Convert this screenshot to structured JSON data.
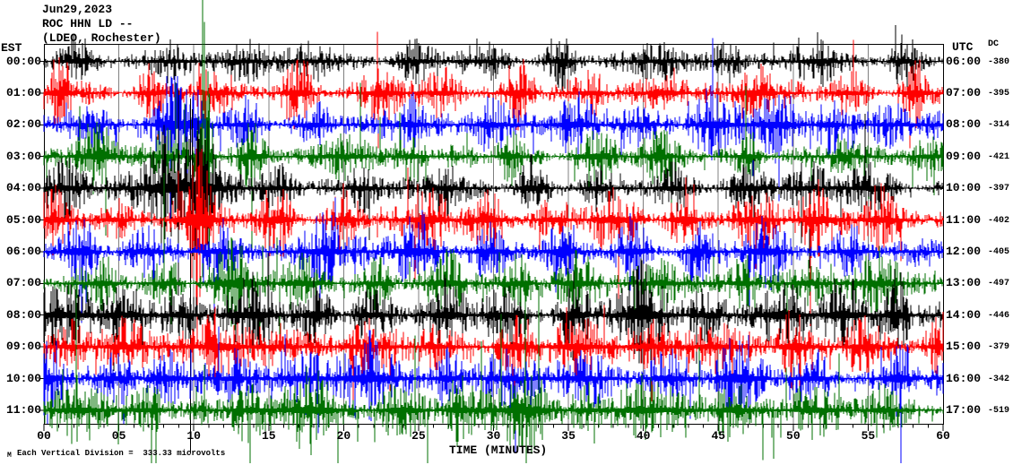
{
  "header": {
    "date": "Jun29,2023",
    "station": "ROC HHN LD --",
    "location": "(LDEO, Rochester)"
  },
  "axes": {
    "left_label": "EST",
    "right_label": "UTC",
    "dc_label": "DC",
    "x_title": "TIME (MINUTES)",
    "x_ticks": [
      "00",
      "05",
      "10",
      "15",
      "20",
      "25",
      "30",
      "35",
      "40",
      "45",
      "50",
      "55",
      "60"
    ],
    "x_minutes_min": 0,
    "x_minutes_max": 60,
    "grid_every_minutes": 5
  },
  "footer": {
    "scale_note": "Each Vertical Division =  333.33 microvolts",
    "watermark": "M"
  },
  "colors": {
    "background": "#ffffff",
    "border": "#000000",
    "grid": "#808080",
    "trace_black": "#000000",
    "trace_red": "#ff0000",
    "trace_blue": "#0000ff",
    "trace_green": "#007000"
  },
  "chart_data": {
    "type": "seismogram-helicorder",
    "title": "ROC HHN LD -- (LDEO, Rochester) Jun29,2023",
    "xlabel": "TIME (MINUTES)",
    "x_range_minutes": [
      0,
      60
    ],
    "minutes_per_row": 60,
    "vertical_division_microvolts": 333.33,
    "rows": [
      {
        "est": "00:00",
        "utc": "06:00",
        "dc": "-380",
        "color": "#000000",
        "amp": 3.0,
        "burst_amp": 8,
        "burst_interval": 5.6,
        "burst_phase": 2.3,
        "seed": 101,
        "tail_p": 0.008,
        "tail_m": 3.5,
        "extra_bursts": [],
        "spikes": []
      },
      {
        "est": "01:00",
        "utc": "07:00",
        "dc": "-395",
        "color": "#ff0000",
        "amp": 3.8,
        "burst_amp": 10,
        "burst_interval": 5.2,
        "burst_phase": 1.0,
        "seed": 202,
        "tail_p": 0.009,
        "tail_m": 3.5,
        "extra_bursts": [],
        "spikes": []
      },
      {
        "est": "02:00",
        "utc": "08:00",
        "dc": "-314",
        "color": "#0000ff",
        "amp": 4.0,
        "burst_amp": 11,
        "burst_interval": 5.0,
        "burst_phase": 2.8,
        "seed": 303,
        "tail_p": 0.01,
        "tail_m": 4.0,
        "extra_bursts": [
          {
            "c": 9.7,
            "w": 0.7,
            "a": 16
          }
        ],
        "spikes": []
      },
      {
        "est": "03:00",
        "utc": "09:00",
        "dc": "-421",
        "color": "#007000",
        "amp": 3.4,
        "burst_amp": 9,
        "burst_interval": 5.4,
        "burst_phase": 3.5,
        "seed": 404,
        "tail_p": 0.02,
        "tail_m": 6.0,
        "extra_bursts": [
          {
            "c": 10.75,
            "w": 0.45,
            "a": 22
          }
        ],
        "spikes": [
          {
            "m": 10.6,
            "up": 175,
            "dn": 135
          },
          {
            "m": 10.72,
            "up": 150,
            "dn": 80
          },
          {
            "m": 10.95,
            "up": 95,
            "dn": 115
          },
          {
            "m": 11.05,
            "up": 70,
            "dn": 140
          }
        ]
      },
      {
        "est": "04:00",
        "utc": "10:00",
        "dc": "-397",
        "color": "#000000",
        "amp": 3.4,
        "burst_amp": 10,
        "burst_interval": 5.1,
        "burst_phase": 1.6,
        "seed": 505,
        "tail_p": 0.01,
        "tail_m": 4.0,
        "extra_bursts": [
          {
            "c": 8.0,
            "w": 0.7,
            "a": 22
          },
          {
            "c": 10.3,
            "w": 0.7,
            "a": 26
          }
        ],
        "spikes": [
          {
            "m": 8.97,
            "up": 110,
            "dn": 120
          },
          {
            "m": 9.78,
            "up": 100,
            "dn": 296
          },
          {
            "m": 9.9,
            "up": 88,
            "dn": 62
          },
          {
            "m": 10.35,
            "up": 55,
            "dn": 70
          },
          {
            "m": 10.6,
            "up": 48,
            "dn": 52
          }
        ]
      },
      {
        "est": "05:00",
        "utc": "11:00",
        "dc": "-402",
        "color": "#ff0000",
        "amp": 4.0,
        "burst_amp": 11,
        "burst_interval": 4.9,
        "burst_phase": 0.6,
        "seed": 606,
        "tail_p": 0.01,
        "tail_m": 4.0,
        "extra_bursts": [
          {
            "c": 10.5,
            "w": 0.5,
            "a": 14
          }
        ],
        "spikes": [
          {
            "m": 10.55,
            "up": 28,
            "dn": 34
          }
        ]
      },
      {
        "est": "06:00",
        "utc": "12:00",
        "dc": "-405",
        "color": "#0000ff",
        "amp": 4.4,
        "burst_amp": 12,
        "burst_interval": 5.3,
        "burst_phase": 2.4,
        "seed": 707,
        "tail_p": 0.01,
        "tail_m": 4.0,
        "extra_bursts": [],
        "spikes": []
      },
      {
        "est": "07:00",
        "utc": "13:00",
        "dc": "-497",
        "color": "#007000",
        "amp": 4.0,
        "burst_amp": 11,
        "burst_interval": 5.0,
        "burst_phase": 4.0,
        "seed": 808,
        "tail_p": 0.02,
        "tail_m": 6.0,
        "extra_bursts": [],
        "spikes": []
      },
      {
        "est": "08:00",
        "utc": "14:00",
        "dc": "-446",
        "color": "#000000",
        "amp": 4.8,
        "burst_amp": 13,
        "burst_interval": 4.6,
        "burst_phase": 1.2,
        "seed": 909,
        "tail_p": 0.012,
        "tail_m": 4.0,
        "extra_bursts": [],
        "spikes": []
      },
      {
        "est": "09:00",
        "utc": "15:00",
        "dc": "-379",
        "color": "#ff0000",
        "amp": 4.8,
        "burst_amp": 12,
        "burst_interval": 4.8,
        "burst_phase": 2.0,
        "seed": 1010,
        "tail_p": 0.012,
        "tail_m": 4.0,
        "extra_bursts": [],
        "spikes": []
      },
      {
        "est": "10:00",
        "utc": "16:00",
        "dc": "-342",
        "color": "#0000ff",
        "amp": 4.8,
        "burst_amp": 13,
        "burst_interval": 4.7,
        "burst_phase": 0.3,
        "seed": 1111,
        "tail_p": 0.012,
        "tail_m": 4.0,
        "extra_bursts": [],
        "spikes": []
      },
      {
        "est": "11:00",
        "utc": "17:00",
        "dc": "-519",
        "color": "#007000",
        "amp": 5.2,
        "burst_amp": 13,
        "burst_interval": 5.0,
        "burst_phase": 2.6,
        "seed": 1212,
        "tail_p": 0.035,
        "tail_m": 7.0,
        "extra_bursts": [],
        "spikes": []
      }
    ],
    "notable_events": [
      {
        "row_est": "03:00",
        "minute": 10.6,
        "desc": "large clipped green spike extending above plot top"
      },
      {
        "row_est": "04:00",
        "minute": 9.8,
        "desc": "large clipped black spike extending below plot bottom"
      }
    ]
  }
}
